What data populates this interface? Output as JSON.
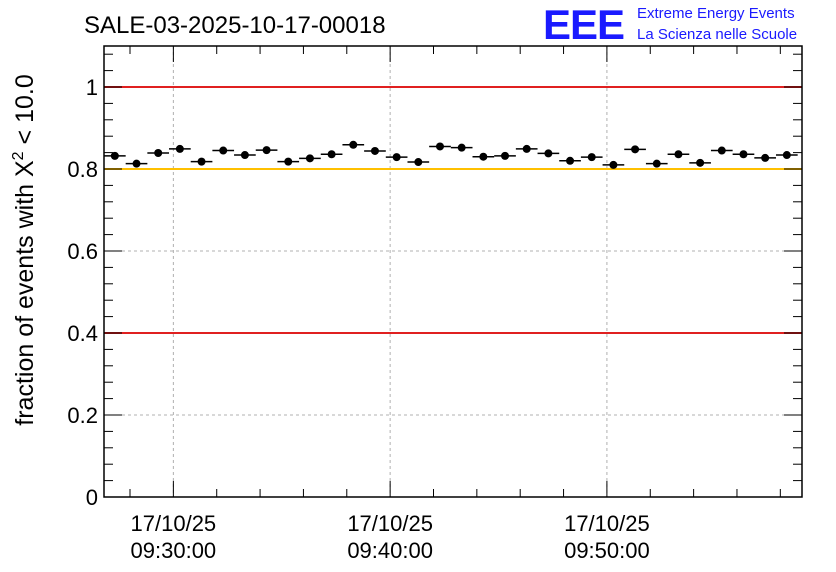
{
  "chart_data": {
    "type": "scatter",
    "title": "SALE-03-2025-10-17-00018",
    "ylabel_prefix": "fraction of events with ",
    "ylabel_symbol": "X",
    "ylabel_superscript": "2",
    "ylabel_suffix": " < 10.0",
    "xlabel": "",
    "ylim": [
      0,
      1.1
    ],
    "yticks": [
      "0",
      "0.2",
      "0.4",
      "0.6",
      "0.8",
      "1"
    ],
    "ytick_values": [
      0,
      0.2,
      0.4,
      0.6,
      0.8,
      1.0
    ],
    "grid": true,
    "x_unit": "minutes",
    "xlim": [
      26.8,
      59.0
    ],
    "xtick_positions": [
      30,
      40,
      50
    ],
    "xtick_dates": [
      "17/10/25",
      "17/10/25",
      "17/10/25"
    ],
    "xtick_times": [
      "09:30:00",
      "09:40:00",
      "09:50:00"
    ],
    "reference_lines": [
      {
        "y": 1.0,
        "color": "#e02020"
      },
      {
        "y": 0.8,
        "color": "#ffc000"
      },
      {
        "y": 0.4,
        "color": "#e02020"
      }
    ],
    "bin_width": 1.0,
    "series": [
      {
        "name": "fraction",
        "x": [
          27.3,
          28.3,
          29.3,
          30.3,
          31.3,
          32.3,
          33.3,
          34.3,
          35.3,
          36.3,
          37.3,
          38.3,
          39.3,
          40.3,
          41.3,
          42.3,
          43.3,
          44.3,
          45.3,
          46.3,
          47.3,
          48.3,
          49.3,
          50.3,
          51.3,
          52.3,
          53.3,
          54.3,
          55.3,
          56.3,
          57.3,
          58.3
        ],
        "y": [
          0.832,
          0.813,
          0.839,
          0.849,
          0.818,
          0.845,
          0.834,
          0.846,
          0.818,
          0.826,
          0.836,
          0.859,
          0.844,
          0.829,
          0.817,
          0.855,
          0.852,
          0.83,
          0.832,
          0.849,
          0.838,
          0.82,
          0.829,
          0.81,
          0.848,
          0.813,
          0.836,
          0.815,
          0.845,
          0.836,
          0.827,
          0.834
        ]
      }
    ]
  },
  "logo": {
    "mark": "EEE",
    "line1": "Extreme Energy Events",
    "line2": "La Scienza nelle Scuole"
  },
  "colors": {
    "logo_blue": "#1a1aff",
    "grid": "#b0b0b0",
    "marker": "#000000"
  }
}
